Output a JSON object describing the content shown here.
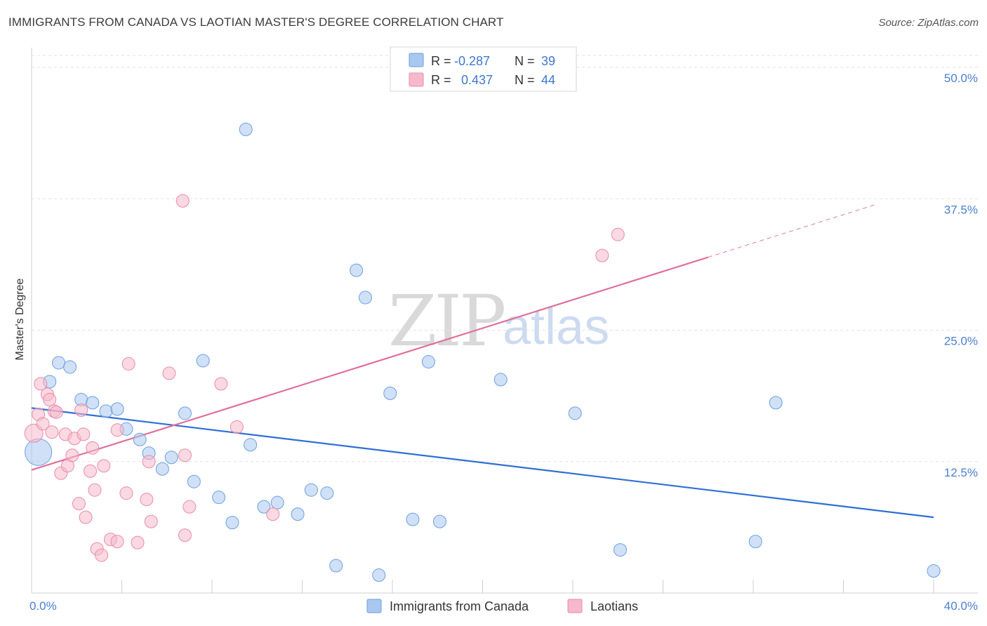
{
  "header": {
    "title": "IMMIGRANTS FROM CANADA VS LAOTIAN MASTER'S DEGREE CORRELATION CHART",
    "source": "Source: ZipAtlas.com"
  },
  "legend": {
    "rows": [
      {
        "r_label": "R =",
        "r_value": "-0.287",
        "n_label": "N =",
        "n_value": "39",
        "color": "#a9c8f0"
      },
      {
        "r_label": "R =",
        "r_value": "0.437",
        "n_label": "N =",
        "n_value": "44",
        "color": "#f6b9cc"
      }
    ]
  },
  "bottom_legend": [
    "Immigrants from Canada",
    "Laotians"
  ],
  "watermark": {
    "zip": "ZIP",
    "atlas": "atlas"
  },
  "chart_data": {
    "type": "scatter",
    "xlabel": "",
    "ylabel": "Master's Degree",
    "xlim": [
      0,
      40
    ],
    "ylim": [
      0,
      50
    ],
    "x_tick_labels": [
      "0.0%",
      "40.0%"
    ],
    "y_ticks": [
      12.5,
      25.0,
      37.5,
      50.0
    ],
    "y_tick_labels": [
      "12.5%",
      "25.0%",
      "37.5%",
      "50.0%"
    ],
    "grid": "horizontal dashed",
    "legend_position": "top-center",
    "series": [
      {
        "name": "Immigrants from Canada",
        "color": "#a9c8f0",
        "stroke": "#6b9ee0",
        "trend_color": "#2f6fd4",
        "trend": {
          "x0": 0,
          "y0": 17.6,
          "x1": 40,
          "y1": 7.2,
          "dash_from": null
        },
        "points": [
          [
            0.3,
            13.4,
            3
          ],
          [
            0.8,
            20.1,
            1
          ],
          [
            1.2,
            21.9,
            1
          ],
          [
            1.7,
            21.5,
            1
          ],
          [
            2.2,
            18.4,
            1
          ],
          [
            2.7,
            18.1,
            1
          ],
          [
            3.3,
            17.3,
            1
          ],
          [
            3.8,
            17.5,
            1
          ],
          [
            4.2,
            15.6,
            1
          ],
          [
            4.8,
            14.6,
            1
          ],
          [
            5.2,
            13.3,
            1
          ],
          [
            5.8,
            11.8,
            1
          ],
          [
            6.2,
            12.9,
            1
          ],
          [
            6.8,
            17.1,
            1
          ],
          [
            7.2,
            10.6,
            1
          ],
          [
            7.6,
            22.1,
            1
          ],
          [
            8.3,
            9.1,
            1
          ],
          [
            8.9,
            6.7,
            1
          ],
          [
            9.5,
            44.1,
            1
          ],
          [
            9.7,
            14.1,
            1
          ],
          [
            10.3,
            8.2,
            1
          ],
          [
            10.9,
            8.6,
            1
          ],
          [
            11.8,
            7.5,
            1
          ],
          [
            12.4,
            9.8,
            1
          ],
          [
            13.1,
            9.5,
            1
          ],
          [
            13.5,
            2.6,
            1
          ],
          [
            14.4,
            30.7,
            1
          ],
          [
            14.8,
            28.1,
            1
          ],
          [
            15.4,
            1.7,
            1
          ],
          [
            15.9,
            19.0,
            1
          ],
          [
            16.9,
            7.0,
            1
          ],
          [
            17.6,
            22.0,
            1
          ],
          [
            18.1,
            6.8,
            1
          ],
          [
            20.8,
            20.3,
            1
          ],
          [
            24.1,
            17.1,
            1
          ],
          [
            26.1,
            4.1,
            1
          ],
          [
            32.1,
            4.9,
            1
          ],
          [
            33.0,
            18.1,
            1
          ],
          [
            40.0,
            2.1,
            1
          ]
        ]
      },
      {
        "name": "Laotians",
        "color": "#f6b9cc",
        "stroke": "#e98aa8",
        "trend_color": "#e0709a",
        "trend": {
          "x0": 0,
          "y0": 11.7,
          "x1": 37.5,
          "y1": 37.0,
          "dash_from": 30.0
        },
        "points": [
          [
            0.1,
            15.2,
            2
          ],
          [
            0.3,
            17.0,
            1
          ],
          [
            0.4,
            19.9,
            1
          ],
          [
            0.5,
            16.1,
            1
          ],
          [
            0.7,
            18.9,
            1
          ],
          [
            0.8,
            18.4,
            1
          ],
          [
            0.9,
            15.3,
            1
          ],
          [
            1.0,
            17.3,
            1
          ],
          [
            1.1,
            17.2,
            1
          ],
          [
            1.3,
            11.4,
            1
          ],
          [
            1.5,
            15.1,
            1
          ],
          [
            1.6,
            12.1,
            1
          ],
          [
            1.8,
            13.1,
            1
          ],
          [
            1.9,
            14.7,
            1
          ],
          [
            2.1,
            8.5,
            1
          ],
          [
            2.2,
            17.4,
            1
          ],
          [
            2.3,
            15.1,
            1
          ],
          [
            2.4,
            7.2,
            1
          ],
          [
            2.6,
            11.6,
            1
          ],
          [
            2.7,
            13.8,
            1
          ],
          [
            2.8,
            9.8,
            1
          ],
          [
            2.9,
            4.2,
            1
          ],
          [
            3.1,
            3.6,
            1
          ],
          [
            3.2,
            12.1,
            1
          ],
          [
            3.5,
            5.1,
            1
          ],
          [
            3.8,
            4.9,
            1
          ],
          [
            3.8,
            15.5,
            1
          ],
          [
            4.2,
            9.5,
            1
          ],
          [
            4.3,
            21.8,
            1
          ],
          [
            4.7,
            4.8,
            1
          ],
          [
            5.1,
            8.9,
            1
          ],
          [
            5.2,
            12.5,
            1
          ],
          [
            5.3,
            6.8,
            1
          ],
          [
            6.1,
            20.9,
            1
          ],
          [
            6.7,
            37.3,
            1
          ],
          [
            6.8,
            13.1,
            1
          ],
          [
            6.8,
            5.5,
            1
          ],
          [
            7.0,
            8.2,
            1
          ],
          [
            8.4,
            19.9,
            1
          ],
          [
            9.1,
            15.8,
            1
          ],
          [
            10.7,
            7.5,
            1
          ],
          [
            25.3,
            32.1,
            1
          ],
          [
            26.0,
            34.1,
            1
          ]
        ]
      }
    ]
  }
}
